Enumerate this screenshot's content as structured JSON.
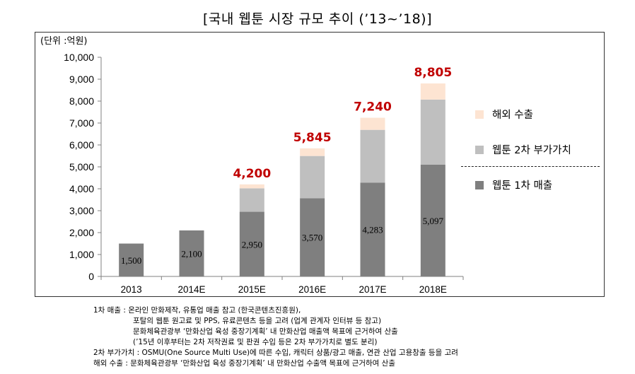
{
  "title": "[국내 웹툰 시장 규모 추이 (’13~’18)]",
  "chart_data": {
    "type": "bar",
    "stacked": true,
    "unit_label": "(단위 :억원)",
    "categories": [
      "2013",
      "2014E",
      "2015E",
      "2016E",
      "2017E",
      "2018E"
    ],
    "series": [
      {
        "name": "웹툰 1차 매출",
        "color": "#7f7f7f",
        "values": [
          1500,
          2100,
          2950,
          3570,
          4283,
          5097
        ],
        "labels": [
          "1,500",
          "2,100",
          "2,950",
          "3,570",
          "4,283",
          "5,097"
        ]
      },
      {
        "name": "웹툰 2차 부가가치",
        "color": "#bfbfbf",
        "values": [
          0,
          0,
          1070,
          1925,
          2405,
          2974
        ]
      },
      {
        "name": "해외 수출",
        "color": "#fde4d2",
        "values": [
          0,
          0,
          180,
          350,
          552,
          734
        ]
      }
    ],
    "totals": [
      "",
      "",
      "4,200",
      "5,845",
      "7,240",
      "8,805"
    ],
    "total_color": "#c00000",
    "ylim": [
      0,
      10000
    ],
    "yticks": [
      "0",
      "1,000",
      "2,000",
      "3,000",
      "4,000",
      "5,000",
      "6,000",
      "7,000",
      "8,000",
      "9,000",
      "10,000"
    ],
    "legend": [
      "해외 수출",
      "웹툰 2차 부가가치",
      "웹툰 1차 매출"
    ]
  },
  "notes": [
    "1차 매출 : 온라인 만화제작, 유통업 매출 참고 (한국콘텐츠진흥원),",
    "포탈의 웹툰 원고료 및 PPS, 유료콘텐츠 등을 고려 (업계 관계자 인터뷰 등 참고)",
    "문화체육관광부 ‘만화산업 육성 중장기계획’ 내 만화산업 매출액 목표에 근거하여 산출",
    "(’15년 이후부터는 2차 저작권료 및 판권 수입 등은 2차 부가가치로 별도 분리)",
    "2차 부가가치 : OSMU(One Source Multi Use)에 따른 수입, 캐릭터 상품/광고 매출, 연관 산업 고용창출 등을 고려",
    "해외 수출 :  문화체육관광부 ‘만화산업 육성 중장기계획’ 내 만화산업 수출액 목표에 근거하여 산출"
  ]
}
